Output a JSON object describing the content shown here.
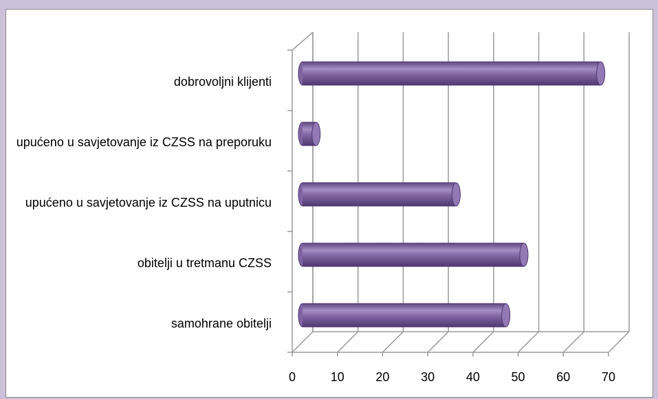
{
  "chart_data": {
    "type": "bar3d_horizontal",
    "categories": [
      "dobrovoljni klijenti",
      "upućeno u savjetovanje iz CZSS na preporuku",
      "upućeno u savjetovanje iz CZSS na uputnicu",
      "obitelji u tretmanu CZSS",
      "samohrane obitelji"
    ],
    "values": [
      66,
      3,
      34,
      49,
      45
    ],
    "color": "#8064a2",
    "xlim": [
      0,
      70
    ],
    "xticks": [
      0,
      10,
      20,
      30,
      40,
      50,
      60,
      70
    ],
    "grid": true
  }
}
